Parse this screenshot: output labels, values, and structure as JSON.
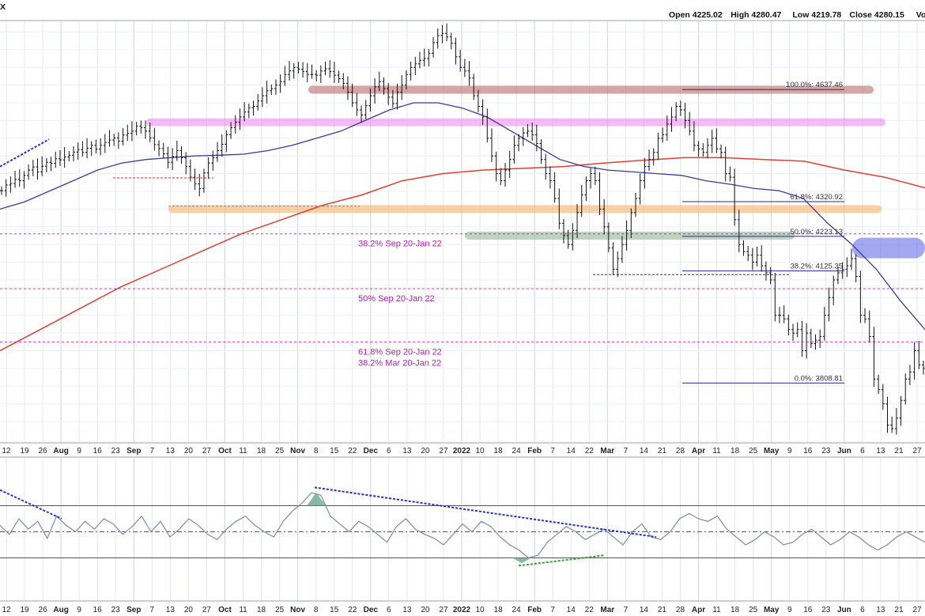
{
  "header": {
    "ticker_fragment": "X",
    "ohlc": [
      {
        "label": "Open",
        "value": "4225.02"
      },
      {
        "label": "High",
        "value": "4280.47"
      },
      {
        "label": "Low",
        "value": "4219.78"
      },
      {
        "label": "Close",
        "value": "4280.15"
      },
      {
        "label": "Volum",
        "value": ""
      }
    ]
  },
  "chart_data": {
    "type": "line",
    "x_ticks": [
      {
        "label": "12"
      },
      {
        "label": "19"
      },
      {
        "label": "26"
      },
      {
        "label": "Aug",
        "bold": true
      },
      {
        "label": "9"
      },
      {
        "label": "16"
      },
      {
        "label": "23"
      },
      {
        "label": "Sep",
        "bold": true
      },
      {
        "label": "7"
      },
      {
        "label": "13"
      },
      {
        "label": "20"
      },
      {
        "label": "27"
      },
      {
        "label": "Oct",
        "bold": true
      },
      {
        "label": "11"
      },
      {
        "label": "18"
      },
      {
        "label": "25"
      },
      {
        "label": "Nov",
        "bold": true
      },
      {
        "label": "8"
      },
      {
        "label": "15"
      },
      {
        "label": "22"
      },
      {
        "label": "Dec",
        "bold": true
      },
      {
        "label": "6"
      },
      {
        "label": "13"
      },
      {
        "label": "20"
      },
      {
        "label": "27"
      },
      {
        "label": "2022",
        "bold": true
      },
      {
        "label": "10"
      },
      {
        "label": "18"
      },
      {
        "label": "24"
      },
      {
        "label": "Feb",
        "bold": true
      },
      {
        "label": "7"
      },
      {
        "label": "14"
      },
      {
        "label": "22"
      },
      {
        "label": "Mar",
        "bold": true
      },
      {
        "label": "7"
      },
      {
        "label": "14"
      },
      {
        "label": "21"
      },
      {
        "label": "28"
      },
      {
        "label": "Apr",
        "bold": true
      },
      {
        "label": "11"
      },
      {
        "label": "18"
      },
      {
        "label": "25"
      },
      {
        "label": "May",
        "bold": true
      },
      {
        "label": "9"
      },
      {
        "label": "16"
      },
      {
        "label": "23"
      },
      {
        "label": "Jun",
        "bold": true
      },
      {
        "label": "6"
      },
      {
        "label": "13"
      },
      {
        "label": "21"
      },
      {
        "label": "27"
      }
    ],
    "price_closes": [
      4352,
      4368,
      4372,
      4384,
      4380,
      4395,
      4410,
      4419,
      4405,
      4421,
      4432,
      4429,
      4442,
      4439,
      4447,
      4452,
      4461,
      4468,
      4460,
      4472,
      4480,
      4469,
      4480,
      4488,
      4495,
      4501,
      4492,
      4509,
      4514,
      4520,
      4534,
      4530,
      4520,
      4501,
      4482,
      4471,
      4456,
      4432,
      4448,
      4465,
      4445,
      4420,
      4390,
      4371,
      4358,
      4402,
      4430,
      4445,
      4465,
      4483,
      4510,
      4530,
      4545,
      4560,
      4574,
      4586,
      4590,
      4605,
      4620,
      4634,
      4640,
      4650,
      4660,
      4680,
      4690,
      4700,
      4695,
      4688,
      4680,
      4680,
      4678,
      4690,
      4696,
      4688,
      4678,
      4668,
      4655,
      4630,
      4600,
      4580,
      4566,
      4592,
      4620,
      4645,
      4660,
      4640,
      4616,
      4598,
      4630,
      4650,
      4680,
      4700,
      4710,
      4720,
      4725,
      4740,
      4770,
      4790,
      4796,
      4786,
      4768,
      4730,
      4700,
      4690,
      4670,
      4620,
      4590,
      4560,
      4500,
      4450,
      4400,
      4380,
      4410,
      4440,
      4480,
      4500,
      4515,
      4520,
      4510,
      4485,
      4440,
      4400,
      4380,
      4330,
      4260,
      4225,
      4200,
      4240,
      4290,
      4340,
      4380,
      4400,
      4380,
      4300,
      4250,
      4190,
      4130,
      4160,
      4200,
      4240,
      4290,
      4330,
      4380,
      4420,
      4440,
      4460,
      4500,
      4510,
      4540,
      4560,
      4590,
      4580,
      4550,
      4520,
      4480,
      4470,
      4460,
      4480,
      4500,
      4470,
      4460,
      4400,
      4390,
      4270,
      4200,
      4180,
      4170,
      4150,
      4170,
      4140,
      4120,
      4100,
      4000,
      4000,
      3990,
      3960,
      3950,
      3960,
      3900,
      3950,
      3920,
      3930,
      3940,
      4000,
      4050,
      4100,
      4120,
      4130,
      4140,
      4160,
      4110,
      4000,
      3990,
      3940,
      3820,
      3790,
      3750,
      3690,
      3680,
      3710,
      3760,
      3820,
      3840,
      3900,
      3860,
      3850
    ],
    "horizontal_bands": [
      {
        "name": "red-band",
        "price": 4637,
        "color": "#b86a6a"
      },
      {
        "name": "pink-band",
        "price": 4545,
        "color": "#f08cf0"
      },
      {
        "name": "orange-band",
        "price": 4300,
        "color": "#f4b46a"
      },
      {
        "name": "green-band",
        "price": 4225,
        "color": "#8fb896"
      },
      {
        "name": "blue-band",
        "price": 4190,
        "color": "#5a60e8"
      }
    ],
    "retracement_lines": [
      {
        "label": "38.2% Sep 20-Jan 22",
        "price": 4230
      },
      {
        "label": "50% Sep 20-Jan 22",
        "price": 4075
      },
      {
        "label": "61.8% Sep 20-Jan 22",
        "label2": "38.2% Mar 20-Jan 22",
        "price": 3925
      }
    ],
    "fib_levels": [
      {
        "label": "100.0%: 4637.46",
        "price": 4637.46
      },
      {
        "label": "61.8%: 4320.92",
        "price": 4320.92
      },
      {
        "label": "50.0%: 4223.13",
        "price": 4223.13
      },
      {
        "label": "38.2%: 4125.35",
        "price": 4125.35
      },
      {
        "label": "0.0%: 3808.81",
        "price": 3808.81
      }
    ],
    "ma_50": [
      4300,
      4320,
      4350,
      4380,
      4410,
      4430,
      4440,
      4445,
      4450,
      4452,
      4455,
      4465,
      4480,
      4500,
      4520,
      4550,
      4580,
      4600,
      4600,
      4585,
      4560,
      4520,
      4480,
      4440,
      4420,
      4410,
      4405,
      4400,
      4395,
      4380,
      4370,
      4358,
      4352,
      4330,
      4260,
      4200,
      4130,
      4040,
      3960
    ],
    "ma_200": [
      3900,
      3960,
      4020,
      4080,
      4130,
      4180,
      4230,
      4270,
      4310,
      4340,
      4380,
      4400,
      4410,
      4415,
      4420,
      4430,
      4438,
      4445,
      4445,
      4440,
      4435,
      4410,
      4390,
      4360
    ],
    "rsi_line": [
      55,
      48,
      60,
      52,
      58,
      45,
      62,
      55,
      50,
      58,
      52,
      60,
      56,
      48,
      54,
      62,
      50,
      58,
      46,
      52,
      60,
      55,
      48,
      44,
      52,
      58,
      62,
      55,
      50,
      46,
      58,
      66,
      72,
      80,
      78,
      62,
      56,
      50,
      58,
      54,
      48,
      42,
      54,
      60,
      52,
      48,
      45,
      40,
      48,
      56,
      50,
      58,
      54,
      46,
      40,
      36,
      30,
      32,
      42,
      48,
      54,
      50,
      44,
      48,
      52,
      46,
      40,
      50,
      56,
      46,
      44,
      50,
      60,
      64,
      60,
      58,
      62,
      52,
      46,
      40,
      44,
      50,
      46,
      40,
      42,
      48,
      52,
      46,
      40,
      44,
      50,
      46,
      40,
      36,
      40,
      46,
      50,
      46,
      42
    ],
    "rsi_levels": [
      70,
      50,
      30
    ],
    "date_count": 210
  }
}
